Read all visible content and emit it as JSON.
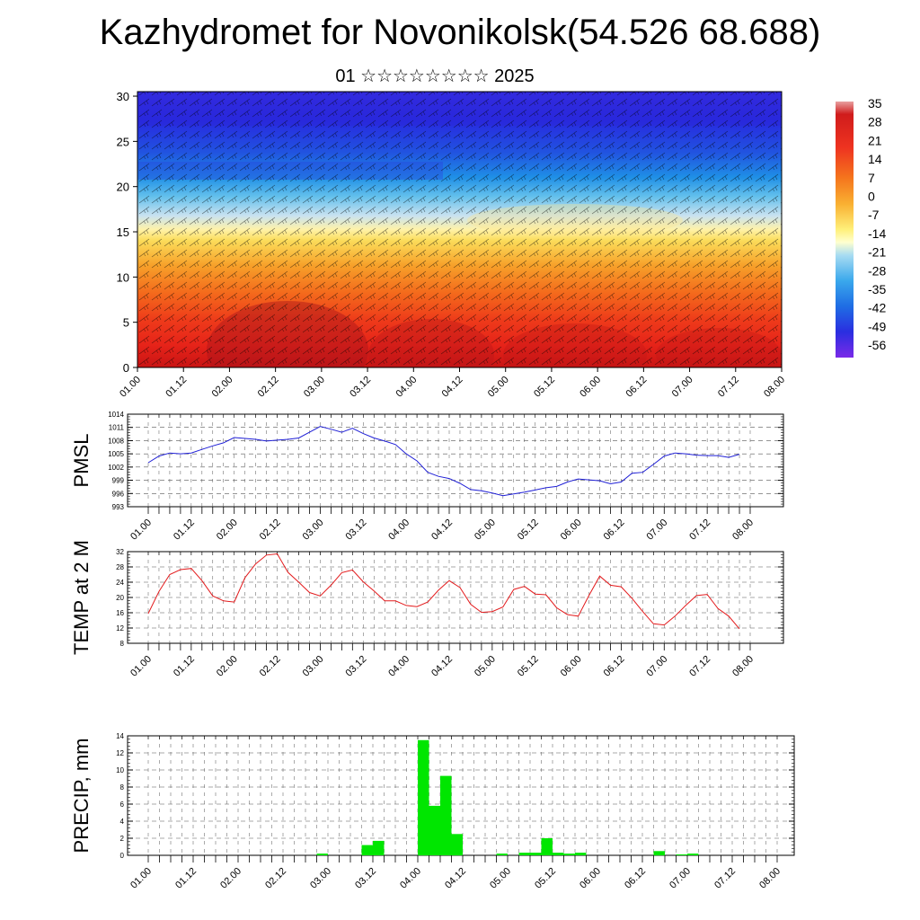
{
  "title": "Kazhydromet for Novonikolsk(54.526 68.688)",
  "subtitle": "01 ☆☆☆☆☆☆☆☆ 2025",
  "time_ticks": [
    "01.00",
    "01.12",
    "02.00",
    "02.12",
    "03.00",
    "03.12",
    "04.00",
    "04.12",
    "05.00",
    "05.12",
    "06.00",
    "06.12",
    "07.00",
    "07.12",
    "08.00"
  ],
  "colors": {
    "pmsl_line": "#1f1fd6",
    "temp_line": "#e31a1c",
    "precip_bar": "#00e600",
    "grid": "#555555"
  },
  "chart_data": [
    {
      "type": "heatmap",
      "title": "",
      "xlabel": "",
      "ylabel": "",
      "x_ticks": [
        "01.00",
        "01.12",
        "02.00",
        "02.12",
        "03.00",
        "03.12",
        "04.00",
        "04.12",
        "05.00",
        "05.12",
        "06.00",
        "06.12",
        "07.00",
        "07.12",
        "08.00"
      ],
      "y_ticks": [
        0,
        5,
        10,
        15,
        20,
        25,
        30
      ],
      "ylim": [
        0,
        30.5
      ],
      "colorbar_labels": [
        "35",
        "28",
        "21",
        "14",
        "7",
        "0",
        "-7",
        "-14",
        "-21",
        "-28",
        "-35",
        "-42",
        "-49",
        "-56"
      ],
      "colorbar_range": [
        -63,
        42
      ],
      "overlay": "wind barbs"
    },
    {
      "type": "line",
      "ylabel": "PMSL",
      "ylim": [
        993,
        1014
      ],
      "y_ticks": [
        993,
        996,
        999,
        1002,
        1005,
        1008,
        1011,
        1014
      ],
      "x_ticks": [
        "01.00",
        "01.12",
        "02.00",
        "02.12",
        "03.00",
        "03.12",
        "04.00",
        "04.12",
        "05.00",
        "05.12",
        "06.00",
        "06.12",
        "07.00",
        "07.12",
        "08.00"
      ],
      "x_hours": [
        0,
        3,
        6,
        9,
        12,
        15,
        18,
        21,
        24,
        27,
        30,
        33,
        36,
        39,
        42,
        45,
        48,
        51,
        54,
        57,
        60,
        63,
        66,
        69,
        72,
        75,
        78,
        81,
        84,
        87,
        90,
        93,
        96,
        99,
        102,
        105,
        108,
        111,
        114,
        117,
        120,
        123,
        126,
        129,
        132,
        135,
        138,
        141,
        144,
        147,
        150,
        153,
        156,
        159,
        162,
        165
      ],
      "values": [
        1003,
        1004.5,
        1005.2,
        1005,
        1005.2,
        1006,
        1006.8,
        1007.5,
        1008.7,
        1008.5,
        1008.3,
        1007.9,
        1008.1,
        1008.3,
        1008.6,
        1009.9,
        1011.2,
        1010.6,
        1009.9,
        1010.8,
        1009.6,
        1008.6,
        1007.9,
        1007.1,
        1005,
        1003.4,
        1000.8,
        999.9,
        999.4,
        998.3,
        996.9,
        996.6,
        996.1,
        995.5,
        995.9,
        996.3,
        996.8,
        997.3,
        997.6,
        998.6,
        999.3,
        999.1,
        998.9,
        998.2,
        998.6,
        1000.6,
        1000.8,
        1002.6,
        1004.5,
        1005.2,
        1005,
        1004.7,
        1004.6,
        1004.6,
        1004.2,
        1004.9
      ]
    },
    {
      "type": "line",
      "ylabel": "TEMP at 2 M",
      "ylim": [
        8,
        32
      ],
      "y_ticks": [
        8,
        12,
        16,
        20,
        24,
        28,
        32
      ],
      "x_ticks": [
        "01.00",
        "01.12",
        "02.00",
        "02.12",
        "03.00",
        "03.12",
        "04.00",
        "04.12",
        "05.00",
        "05.12",
        "06.00",
        "06.12",
        "07.00",
        "07.12",
        "08.00"
      ],
      "x_hours": [
        0,
        3,
        6,
        9,
        12,
        15,
        18,
        21,
        24,
        27,
        30,
        33,
        36,
        39,
        42,
        45,
        48,
        51,
        54,
        57,
        60,
        63,
        66,
        69,
        72,
        75,
        78,
        81,
        84,
        87,
        90,
        93,
        96,
        99,
        102,
        105,
        108,
        111,
        114,
        117,
        120,
        123,
        126,
        129,
        132,
        135,
        138,
        141,
        144,
        147,
        150,
        153,
        156,
        159,
        162,
        165
      ],
      "values": [
        15.8,
        21.6,
        26,
        27.3,
        27.6,
        24.4,
        20.4,
        19.1,
        18.8,
        25.2,
        28.8,
        31.1,
        31.4,
        26.6,
        24,
        21.3,
        20.4,
        23.2,
        26.5,
        27.2,
        24.1,
        21.7,
        19.1,
        19.1,
        17.9,
        17.6,
        18.8,
        21.9,
        24.4,
        22.6,
        18.2,
        16.1,
        16.3,
        17.5,
        22.1,
        22.9,
        20.9,
        20.7,
        17.3,
        15.5,
        15.1,
        20.5,
        25.6,
        23.2,
        22.8,
        19.8,
        16.3,
        13.1,
        12.8,
        15.1,
        17.9,
        20.5,
        20.8,
        17.1,
        15.1,
        11.8
      ]
    },
    {
      "type": "bar",
      "ylabel": "PRECIP, mm",
      "ylim": [
        0,
        14
      ],
      "y_ticks": [
        0,
        2,
        4,
        6,
        8,
        10,
        12,
        14
      ],
      "x_ticks": [
        "01.00",
        "01.12",
        "02.00",
        "02.12",
        "03.00",
        "03.12",
        "04.00",
        "04.12",
        "05.00",
        "05.12",
        "06.00",
        "06.12",
        "07.00",
        "07.12",
        "08.00"
      ],
      "x_hours": [
        0,
        3,
        6,
        9,
        12,
        15,
        18,
        21,
        24,
        27,
        30,
        33,
        36,
        39,
        42,
        45,
        48,
        51,
        54,
        57,
        60,
        63,
        66,
        69,
        72,
        75,
        78,
        81,
        84,
        87,
        90,
        93,
        96,
        99,
        102,
        105,
        108,
        111,
        114,
        117,
        120,
        123,
        126,
        129,
        132,
        135,
        138,
        141,
        144,
        147,
        150,
        153,
        156,
        159,
        162,
        165
      ],
      "values": [
        0,
        0,
        0,
        0,
        0,
        0,
        0,
        0,
        0,
        0,
        0,
        0,
        0,
        0,
        0,
        0.2,
        0,
        0,
        0,
        1.2,
        1.7,
        0,
        0,
        0,
        13.5,
        5.8,
        9.3,
        2.5,
        0,
        0,
        0,
        0.2,
        0,
        0.3,
        0.3,
        2,
        0.3,
        0.2,
        0.3,
        0,
        0,
        0,
        0,
        0,
        0,
        0.5,
        0,
        0.1,
        0.2,
        0,
        0,
        0,
        0,
        0,
        0,
        0
      ]
    }
  ]
}
